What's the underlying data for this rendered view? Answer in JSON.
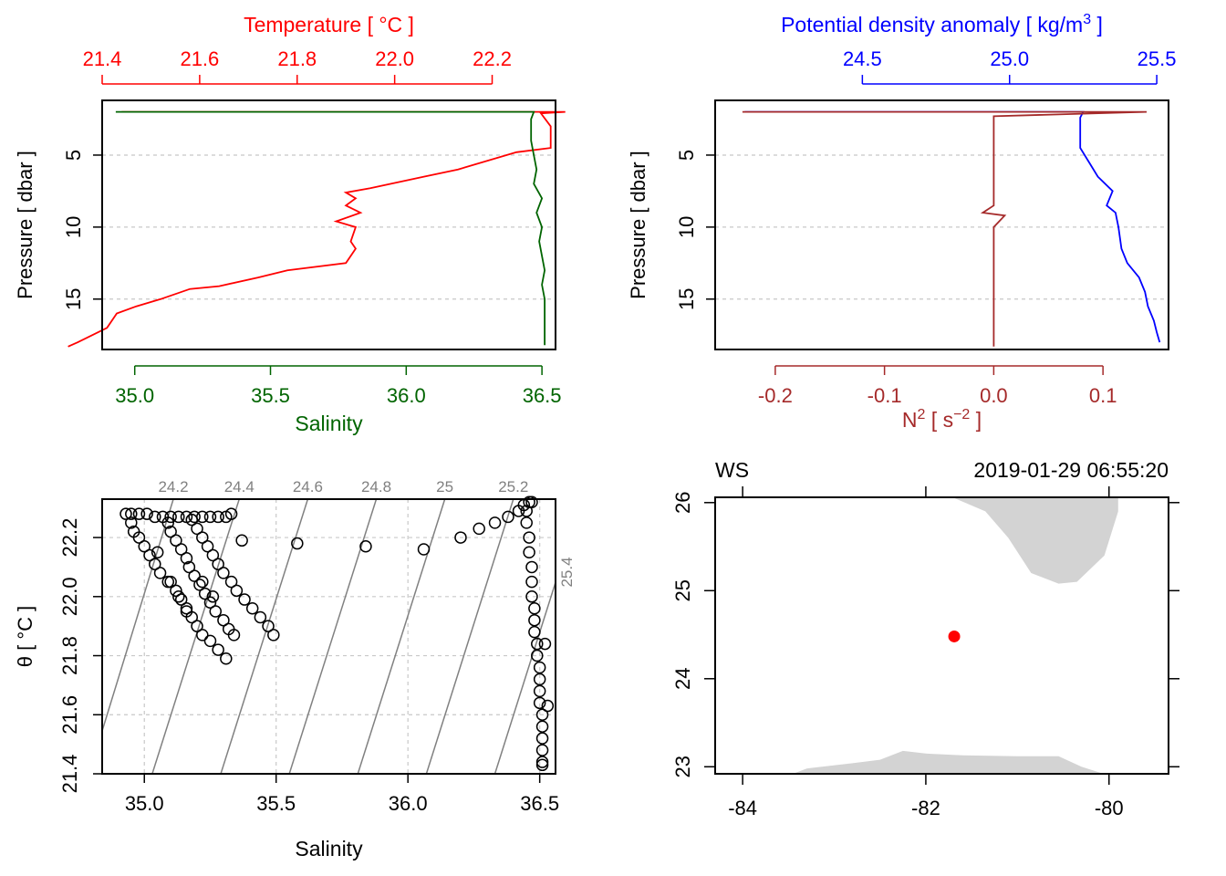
{
  "figure": {
    "colors": {
      "temperature": "#ff0000",
      "salinity": "#006400",
      "density": "#0000ff",
      "n2": "#a52a2a",
      "land": "#d3d3d3",
      "station": "#ff0000",
      "grid": "#c8c8c8",
      "isopycnal": "#808080",
      "axis": "#000000"
    }
  },
  "chart_data": [
    {
      "id": "profile-ts",
      "type": "line",
      "title": "Temperature [ °C ]",
      "xlabel": "Salinity",
      "ylabel": "Pressure [ dbar ]",
      "top_axis": {
        "label": "Temperature [ °C ]",
        "lim": [
          21.4,
          22.33
        ],
        "ticks": [
          21.4,
          21.6,
          21.8,
          22.0,
          22.2
        ],
        "tick_labels": [
          "21.4",
          "21.6",
          "21.8",
          "22.0",
          "22.2"
        ]
      },
      "bottom_axis": {
        "label": "Salinity",
        "lim": [
          34.88,
          36.55
        ],
        "ticks": [
          35.0,
          35.5,
          36.0,
          36.5
        ],
        "tick_labels": [
          "35.0",
          "35.5",
          "36.0",
          "36.5"
        ]
      },
      "y_axis": {
        "lim": [
          18.5,
          1.2
        ],
        "ticks": [
          5,
          10,
          15
        ],
        "tick_labels": [
          "5",
          "10",
          "15"
        ],
        "reversed": true
      },
      "grid": "horizontal",
      "series": [
        {
          "name": "Temperature",
          "axis": "top",
          "points": [
            [
              21.44,
              2.0
            ],
            [
              22.35,
              2.0
            ],
            [
              22.3,
              2.1
            ],
            [
              22.32,
              3.0
            ],
            [
              22.32,
              4.5
            ],
            [
              22.25,
              4.8
            ],
            [
              22.13,
              6.0
            ],
            [
              22.06,
              6.5
            ],
            [
              21.95,
              7.3
            ],
            [
              21.9,
              7.6
            ],
            [
              21.92,
              8.0
            ],
            [
              21.9,
              8.5
            ],
            [
              21.93,
              9.0
            ],
            [
              21.88,
              9.6
            ],
            [
              21.92,
              10.0
            ],
            [
              21.91,
              11.0
            ],
            [
              21.92,
              11.5
            ],
            [
              21.9,
              12.5
            ],
            [
              21.78,
              13.0
            ],
            [
              21.72,
              13.5
            ],
            [
              21.64,
              14.1
            ],
            [
              21.58,
              14.3
            ],
            [
              21.52,
              15.0
            ],
            [
              21.47,
              15.5
            ],
            [
              21.43,
              16.0
            ],
            [
              21.41,
              17.0
            ],
            [
              21.38,
              17.5
            ],
            [
              21.35,
              18.0
            ],
            [
              21.33,
              18.3
            ]
          ]
        },
        {
          "name": "Salinity",
          "axis": "bottom",
          "points": [
            [
              34.93,
              2.0
            ],
            [
              36.47,
              2.0
            ],
            [
              36.46,
              2.5
            ],
            [
              36.46,
              4.0
            ],
            [
              36.47,
              5.0
            ],
            [
              36.48,
              6.0
            ],
            [
              36.47,
              7.0
            ],
            [
              36.5,
              8.0
            ],
            [
              36.48,
              9.0
            ],
            [
              36.5,
              10.0
            ],
            [
              36.49,
              11.0
            ],
            [
              36.5,
              12.0
            ],
            [
              36.51,
              13.0
            ],
            [
              36.5,
              14.0
            ],
            [
              36.51,
              15.0
            ],
            [
              36.51,
              16.0
            ],
            [
              36.51,
              17.0
            ],
            [
              36.51,
              18.2
            ]
          ]
        }
      ]
    },
    {
      "id": "profile-density",
      "type": "line",
      "title": "Potential density anomaly [ kg/m3 ]",
      "xlabel": "N2 [ s-2 ]",
      "ylabel": "Pressure [ dbar ]",
      "top_axis": {
        "label": "Potential density anomaly [ kg/m",
        "label_sup": "3",
        "label_tail": " ]",
        "lim": [
          24.0,
          25.54
        ],
        "ticks": [
          24.5,
          25.0,
          25.5
        ],
        "tick_labels": [
          "24.5",
          "25.0",
          "25.5"
        ]
      },
      "bottom_axis": {
        "label": "N",
        "label_sup": "2",
        "label_mid": " [ s",
        "label_sup2": "−2",
        "label_tail": " ]",
        "lim": [
          -0.255,
          0.16
        ],
        "ticks": [
          -0.2,
          -0.1,
          0.0,
          0.1
        ],
        "tick_labels": [
          "-0.2",
          "-0.1",
          "0.0",
          "0.1"
        ]
      },
      "y_axis": {
        "lim": [
          18.5,
          1.2
        ],
        "ticks": [
          5,
          10,
          15
        ],
        "tick_labels": [
          "5",
          "10",
          "15"
        ],
        "reversed": true
      },
      "grid": "horizontal",
      "series": [
        {
          "name": "Potential density anomaly",
          "axis": "top",
          "points": [
            [
              24.1,
              2.0
            ],
            [
              25.25,
              2.0
            ],
            [
              25.24,
              2.4
            ],
            [
              25.24,
              4.5
            ],
            [
              25.27,
              5.5
            ],
            [
              25.3,
              6.5
            ],
            [
              25.35,
              7.5
            ],
            [
              25.33,
              8.5
            ],
            [
              25.36,
              9.0
            ],
            [
              25.37,
              10.0
            ],
            [
              25.38,
              11.5
            ],
            [
              25.4,
              12.5
            ],
            [
              25.44,
              13.5
            ],
            [
              25.46,
              14.5
            ],
            [
              25.47,
              15.5
            ],
            [
              25.49,
              16.5
            ],
            [
              25.5,
              17.3
            ],
            [
              25.51,
              18.0
            ]
          ]
        },
        {
          "name": "N2",
          "axis": "bottom",
          "points": [
            [
              -0.23,
              2.0
            ],
            [
              0.14,
              2.0
            ],
            [
              0.0,
              2.3
            ],
            [
              0.0,
              2.5
            ],
            [
              0.0,
              3.5
            ],
            [
              0.0,
              5.0
            ],
            [
              0.0,
              7.0
            ],
            [
              0.0,
              8.5
            ],
            [
              -0.01,
              9.0
            ],
            [
              0.01,
              9.2
            ],
            [
              0.0,
              10.0
            ],
            [
              0.0,
              13.0
            ],
            [
              0.0,
              16.0
            ],
            [
              0.0,
              18.3
            ]
          ]
        }
      ]
    },
    {
      "id": "ts-diagram",
      "type": "scatter",
      "xlabel": "Salinity",
      "ylabel": "θ [ °C ]",
      "xlim": [
        34.84,
        36.56
      ],
      "ylim": [
        21.4,
        22.33
      ],
      "x_ticks": [
        35.0,
        35.5,
        36.0,
        36.5
      ],
      "x_tick_labels": [
        "35.0",
        "35.5",
        "36.0",
        "36.5"
      ],
      "y_ticks": [
        21.4,
        21.6,
        21.8,
        22.0,
        22.2
      ],
      "y_tick_labels": [
        "21.4",
        "21.6",
        "21.8",
        "22.0",
        "22.2"
      ],
      "grid": "both",
      "isopycnals": [
        {
          "label": "24.2",
          "S_bottom": 34.79,
          "S_top": 35.11
        },
        {
          "label": "24.4",
          "S_bottom": 35.03,
          "S_top": 35.36
        },
        {
          "label": "24.6",
          "S_bottom": 35.29,
          "S_top": 35.62
        },
        {
          "label": "24.8",
          "S_bottom": 35.55,
          "S_top": 35.88
        },
        {
          "label": "25",
          "S_bottom": 35.81,
          "S_top": 36.14
        },
        {
          "label": "25.2",
          "S_bottom": 36.07,
          "S_top": 36.4
        },
        {
          "label": "25.4",
          "S_bottom": 36.33,
          "S_top": 36.66
        }
      ],
      "points": [
        [
          34.93,
          22.28
        ],
        [
          34.95,
          22.28
        ],
        [
          34.98,
          22.28
        ],
        [
          35.01,
          22.28
        ],
        [
          35.04,
          22.27
        ],
        [
          35.07,
          22.27
        ],
        [
          35.1,
          22.27
        ],
        [
          35.13,
          22.27
        ],
        [
          35.16,
          22.27
        ],
        [
          35.19,
          22.27
        ],
        [
          35.22,
          22.27
        ],
        [
          35.25,
          22.27
        ],
        [
          35.28,
          22.27
        ],
        [
          35.31,
          22.27
        ],
        [
          35.33,
          22.28
        ],
        [
          34.95,
          22.25
        ],
        [
          34.96,
          22.22
        ],
        [
          34.98,
          22.2
        ],
        [
          35.0,
          22.17
        ],
        [
          35.02,
          22.14
        ],
        [
          35.04,
          22.11
        ],
        [
          35.06,
          22.08
        ],
        [
          35.09,
          22.05
        ],
        [
          35.12,
          22.02
        ],
        [
          35.14,
          21.99
        ],
        [
          35.16,
          21.96
        ],
        [
          35.18,
          21.93
        ],
        [
          35.2,
          21.9
        ],
        [
          35.22,
          21.87
        ],
        [
          35.25,
          21.85
        ],
        [
          35.28,
          21.82
        ],
        [
          35.31,
          21.79
        ],
        [
          35.09,
          22.25
        ],
        [
          35.1,
          22.22
        ],
        [
          35.12,
          22.19
        ],
        [
          35.14,
          22.16
        ],
        [
          35.16,
          22.13
        ],
        [
          35.17,
          22.1
        ],
        [
          35.19,
          22.07
        ],
        [
          35.21,
          22.04
        ],
        [
          35.23,
          22.01
        ],
        [
          35.25,
          21.98
        ],
        [
          35.27,
          21.95
        ],
        [
          35.3,
          21.92
        ],
        [
          35.32,
          21.89
        ],
        [
          35.34,
          21.87
        ],
        [
          35.18,
          22.26
        ],
        [
          35.2,
          22.23
        ],
        [
          35.22,
          22.2
        ],
        [
          35.24,
          22.17
        ],
        [
          35.26,
          22.14
        ],
        [
          35.28,
          22.11
        ],
        [
          35.3,
          22.08
        ],
        [
          35.33,
          22.05
        ],
        [
          35.35,
          22.02
        ],
        [
          35.38,
          21.99
        ],
        [
          35.41,
          21.96
        ],
        [
          35.44,
          21.93
        ],
        [
          35.47,
          21.9
        ],
        [
          35.49,
          21.87
        ],
        [
          35.05,
          22.15
        ],
        [
          35.1,
          22.05
        ],
        [
          35.13,
          22.0
        ],
        [
          35.16,
          21.95
        ],
        [
          35.22,
          22.05
        ],
        [
          35.26,
          22.0
        ],
        [
          35.37,
          22.19
        ],
        [
          35.58,
          22.18
        ],
        [
          35.84,
          22.17
        ],
        [
          36.06,
          22.16
        ],
        [
          36.2,
          22.2
        ],
        [
          36.27,
          22.23
        ],
        [
          36.33,
          22.25
        ],
        [
          36.38,
          22.27
        ],
        [
          36.42,
          22.29
        ],
        [
          36.44,
          22.31
        ],
        [
          36.46,
          22.32
        ],
        [
          36.47,
          22.32
        ],
        [
          36.45,
          22.29
        ],
        [
          36.45,
          22.25
        ],
        [
          36.46,
          22.2
        ],
        [
          36.46,
          22.15
        ],
        [
          36.47,
          22.1
        ],
        [
          36.47,
          22.05
        ],
        [
          36.47,
          22.0
        ],
        [
          36.48,
          21.96
        ],
        [
          36.48,
          21.92
        ],
        [
          36.48,
          21.88
        ],
        [
          36.49,
          21.84
        ],
        [
          36.49,
          21.8
        ],
        [
          36.5,
          21.76
        ],
        [
          36.5,
          21.72
        ],
        [
          36.5,
          21.68
        ],
        [
          36.5,
          21.64
        ],
        [
          36.51,
          21.6
        ],
        [
          36.51,
          21.56
        ],
        [
          36.51,
          21.52
        ],
        [
          36.51,
          21.48
        ],
        [
          36.51,
          21.44
        ],
        [
          36.51,
          21.43
        ],
        [
          36.52,
          21.84
        ],
        [
          36.53,
          21.63
        ]
      ]
    },
    {
      "id": "station-map",
      "type": "map",
      "top_left_label": "WS",
      "top_right_label": "2019-01-29 06:55:20",
      "xlim": [
        -84.3,
        -79.35
      ],
      "ylim": [
        22.92,
        26.06
      ],
      "x_ticks": [
        -84,
        -82,
        -80
      ],
      "x_tick_labels": [
        "-84",
        "-82",
        "-80"
      ],
      "y_ticks": [
        23,
        24,
        25,
        26
      ],
      "y_tick_labels": [
        "23",
        "24",
        "25",
        "26"
      ],
      "station": {
        "lon": -81.69,
        "lat": 24.48
      },
      "land": [
        [
          [
            -82.0,
            26.1
          ],
          [
            -79.9,
            26.1
          ],
          [
            -79.9,
            25.9
          ],
          [
            -80.05,
            25.4
          ],
          [
            -80.35,
            25.1
          ],
          [
            -80.55,
            25.08
          ],
          [
            -80.85,
            25.2
          ],
          [
            -81.1,
            25.6
          ],
          [
            -81.35,
            25.9
          ],
          [
            -81.8,
            26.1
          ]
        ],
        [
          [
            -83.5,
            22.9
          ],
          [
            -83.3,
            22.98
          ],
          [
            -82.8,
            23.04
          ],
          [
            -82.5,
            23.08
          ],
          [
            -82.25,
            23.18
          ],
          [
            -82.0,
            23.15
          ],
          [
            -81.6,
            23.13
          ],
          [
            -81.0,
            23.12
          ],
          [
            -80.55,
            23.12
          ],
          [
            -80.3,
            23.0
          ],
          [
            -80.0,
            22.9
          ]
        ]
      ]
    }
  ]
}
